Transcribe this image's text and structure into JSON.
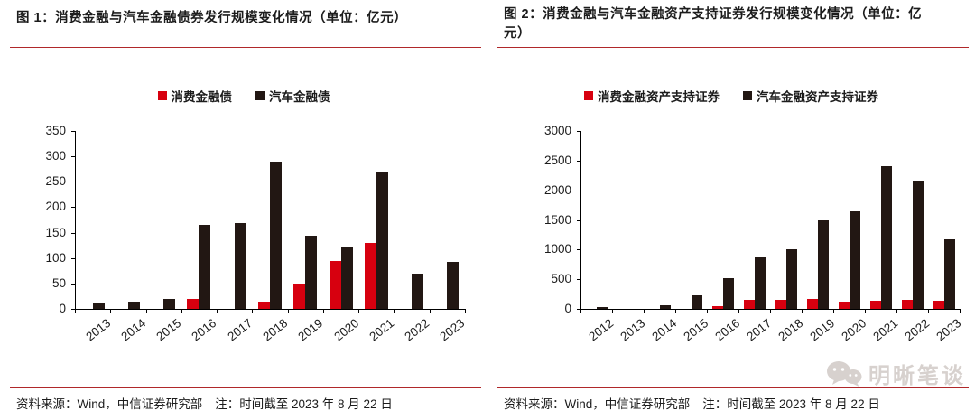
{
  "colors": {
    "series_red": "#d7000f",
    "series_black": "#221713",
    "rule_red": "#b0282a",
    "axis": "#000000",
    "text": "#1c1c1c",
    "watermark": "#d7d1ce"
  },
  "footers": [
    {
      "source": "资料来源：Wind，中信证券研究部",
      "note": "注：时间截至 2023 年 8 月 22 日"
    },
    {
      "source": "资料来源：Wind，中信证券研究部",
      "note": "注：时间截至 2023 年 8 月 22 日"
    }
  ],
  "watermark": {
    "text": "明晰笔谈",
    "icon": "wechat-icon"
  },
  "chart_data": [
    {
      "type": "bar",
      "title": "图 1：消费金融与汽车金融债券发行规模变化情况（单位：亿元）",
      "categories": [
        "2013",
        "2014",
        "2015",
        "2016",
        "2017",
        "2018",
        "2019",
        "2020",
        "2021",
        "2022",
        "2023"
      ],
      "series": [
        {
          "name": "消费金融债",
          "key": "consumer-finance-bond",
          "color": "#d7000f",
          "values": [
            0,
            0,
            0,
            20,
            0,
            15,
            50,
            95,
            130,
            0,
            0
          ]
        },
        {
          "name": "汽车金融债",
          "key": "auto-finance-bond",
          "color": "#221713",
          "values": [
            13,
            15,
            20,
            165,
            168,
            290,
            144,
            122,
            270,
            70,
            92
          ]
        }
      ],
      "ylim": [
        0,
        350
      ],
      "ytick_step": 50,
      "grid": false,
      "legend_position": "top"
    },
    {
      "type": "bar",
      "title": "图 2：消费金融与汽车金融资产支持证券发行规模变化情况（单位：亿元）",
      "categories": [
        "2012",
        "2013",
        "2014",
        "2015",
        "2016",
        "2017",
        "2018",
        "2019",
        "2020",
        "2021",
        "2022",
        "2023"
      ],
      "series": [
        {
          "name": "消费金融资产支持证券",
          "key": "consumer-finance-abs",
          "color": "#d7000f",
          "values": [
            0,
            0,
            0,
            0,
            50,
            150,
            145,
            170,
            120,
            130,
            145,
            130
          ]
        },
        {
          "name": "汽车金融资产支持证券",
          "key": "auto-finance-abs",
          "color": "#221713",
          "values": [
            25,
            0,
            65,
            230,
            520,
            890,
            1000,
            1500,
            1650,
            2400,
            2160,
            1165
          ]
        }
      ],
      "ylim": [
        0,
        3000
      ],
      "ytick_step": 500,
      "grid": false,
      "legend_position": "top"
    }
  ]
}
